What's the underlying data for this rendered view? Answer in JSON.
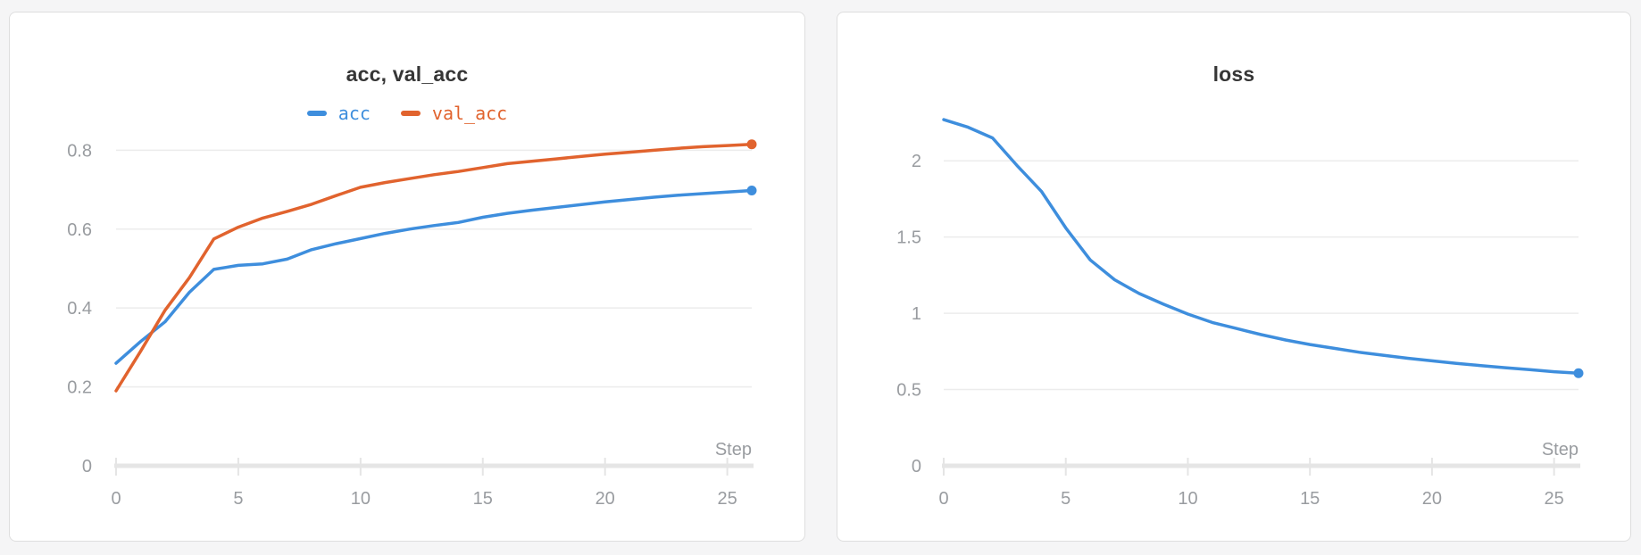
{
  "panels": [
    {
      "title": "acc, val_acc"
    },
    {
      "title": "loss"
    }
  ],
  "chart_data": [
    {
      "type": "line",
      "title": "acc, val_acc",
      "xlabel": "Step",
      "legend_position": "top",
      "grid": "horizontal",
      "xlim": [
        0,
        26
      ],
      "ylim": [
        0,
        0.88
      ],
      "xticks": [
        0,
        5,
        10,
        15,
        20,
        25
      ],
      "xtick_labels": [
        "0",
        "5",
        "10",
        "15",
        "20",
        "25"
      ],
      "yticks": [
        0,
        0.2,
        0.4,
        0.6,
        0.8
      ],
      "ytick_labels": [
        "0",
        "0.2",
        "0.4",
        "0.6",
        "0.8"
      ],
      "x": [
        0,
        1,
        2,
        3,
        4,
        5,
        6,
        7,
        8,
        9,
        10,
        11,
        12,
        13,
        14,
        15,
        16,
        17,
        18,
        19,
        20,
        21,
        22,
        23,
        24,
        25,
        26
      ],
      "series": [
        {
          "name": "acc",
          "color": "#3e8edd",
          "values": [
            0.26,
            0.315,
            0.365,
            0.44,
            0.498,
            0.508,
            0.512,
            0.524,
            0.548,
            0.563,
            0.576,
            0.589,
            0.6,
            0.609,
            0.617,
            0.63,
            0.64,
            0.648,
            0.655,
            0.662,
            0.669,
            0.675,
            0.681,
            0.686,
            0.69,
            0.694,
            0.698
          ]
        },
        {
          "name": "val_acc",
          "color": "#e1632e",
          "values": [
            0.19,
            0.29,
            0.394,
            0.477,
            0.575,
            0.605,
            0.628,
            0.645,
            0.663,
            0.685,
            0.706,
            0.718,
            0.728,
            0.738,
            0.746,
            0.756,
            0.766,
            0.772,
            0.778,
            0.784,
            0.79,
            0.795,
            0.8,
            0.805,
            0.809,
            0.812,
            0.815
          ]
        }
      ]
    },
    {
      "type": "line",
      "title": "loss",
      "xlabel": "Step",
      "legend_position": "none",
      "grid": "horizontal",
      "xlim": [
        0,
        26
      ],
      "ylim": [
        0,
        2.37
      ],
      "xticks": [
        0,
        5,
        10,
        15,
        20,
        25
      ],
      "xtick_labels": [
        "0",
        "5",
        "10",
        "15",
        "20",
        "25"
      ],
      "yticks": [
        0,
        0.5,
        1,
        1.5,
        2
      ],
      "ytick_labels": [
        "0",
        "0.5",
        "1",
        "1.5",
        "2"
      ],
      "x": [
        0,
        1,
        2,
        3,
        4,
        5,
        6,
        7,
        8,
        9,
        10,
        11,
        12,
        13,
        14,
        15,
        16,
        17,
        18,
        19,
        20,
        21,
        22,
        23,
        24,
        25,
        26
      ],
      "series": [
        {
          "name": "loss",
          "color": "#3e8edd",
          "values": [
            2.27,
            2.22,
            2.15,
            1.97,
            1.8,
            1.56,
            1.35,
            1.22,
            1.13,
            1.06,
            0.995,
            0.94,
            0.9,
            0.86,
            0.825,
            0.795,
            0.77,
            0.745,
            0.725,
            0.705,
            0.688,
            0.672,
            0.657,
            0.643,
            0.63,
            0.617,
            0.607
          ]
        }
      ]
    }
  ],
  "style_colors": {
    "title_text": "#363636",
    "tick_text": "#999ca0",
    "gridline": "#ececec",
    "axis_line": "#e5e5e5",
    "card_border": "#dedede",
    "page_background": "#f5f5f6"
  }
}
